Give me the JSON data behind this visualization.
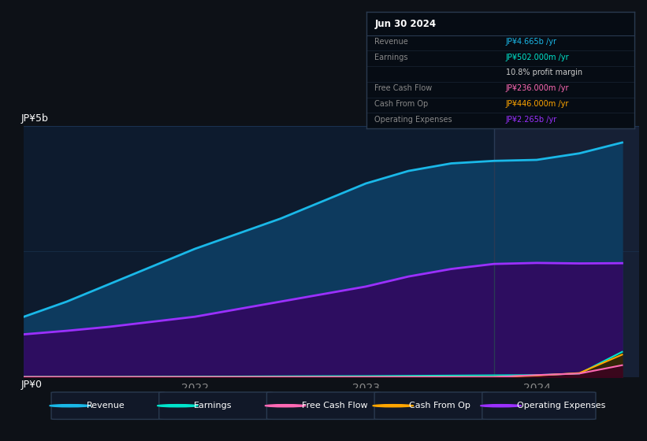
{
  "bg_color": "#0d1117",
  "plot_bg_color": "#0d1b2e",
  "highlight_bg": "#162035",
  "title": "Jun 30 2024",
  "ylabel_top": "JP¥5b",
  "ylabel_bottom": "JP¥0",
  "x_labels": [
    "2022",
    "2023",
    "2024"
  ],
  "series": {
    "Revenue": {
      "color": "#1ab8e8",
      "fill_color": "#0d3a5e",
      "values_x": [
        2021.0,
        2021.25,
        2021.5,
        2021.75,
        2022.0,
        2022.25,
        2022.5,
        2022.75,
        2023.0,
        2023.25,
        2023.5,
        2023.75,
        2024.0,
        2024.25,
        2024.5
      ],
      "values_y": [
        1.2,
        1.5,
        1.85,
        2.2,
        2.55,
        2.85,
        3.15,
        3.5,
        3.85,
        4.1,
        4.25,
        4.3,
        4.32,
        4.45,
        4.665
      ]
    },
    "Operating Expenses": {
      "color": "#9b30ff",
      "fill_color": "#2d0d60",
      "values_x": [
        2021.0,
        2021.25,
        2021.5,
        2021.75,
        2022.0,
        2022.25,
        2022.5,
        2022.75,
        2023.0,
        2023.25,
        2023.5,
        2023.75,
        2024.0,
        2024.25,
        2024.5
      ],
      "values_y": [
        0.85,
        0.92,
        1.0,
        1.1,
        1.2,
        1.35,
        1.5,
        1.65,
        1.8,
        2.0,
        2.15,
        2.25,
        2.27,
        2.26,
        2.265
      ]
    },
    "Earnings": {
      "color": "#00e5cc",
      "fill_color": "#003322",
      "values_x": [
        2021.0,
        2021.25,
        2021.5,
        2021.75,
        2022.0,
        2022.25,
        2022.5,
        2022.75,
        2023.0,
        2023.25,
        2023.5,
        2023.75,
        2024.0,
        2024.25,
        2024.5
      ],
      "values_y": [
        0.005,
        0.005,
        0.005,
        0.008,
        0.01,
        0.012,
        0.015,
        0.018,
        0.02,
        0.025,
        0.03,
        0.035,
        0.04,
        0.07,
        0.502
      ]
    },
    "Free Cash Flow": {
      "color": "#ff69b4",
      "fill_color": "#3d0022",
      "values_x": [
        2021.0,
        2021.25,
        2021.5,
        2021.75,
        2022.0,
        2022.25,
        2022.5,
        2022.75,
        2023.0,
        2023.25,
        2023.5,
        2023.75,
        2024.0,
        2024.25,
        2024.5
      ],
      "values_y": [
        0.0,
        0.0,
        0.0,
        0.0,
        0.0,
        0.0,
        0.0,
        0.0,
        0.0,
        0.0,
        0.0,
        0.0,
        0.04,
        0.07,
        0.236
      ]
    },
    "Cash From Op": {
      "color": "#ffa500",
      "fill_color": "#3d2500",
      "values_x": [
        2021.0,
        2021.25,
        2021.5,
        2021.75,
        2022.0,
        2022.25,
        2022.5,
        2022.75,
        2023.0,
        2023.25,
        2023.5,
        2023.75,
        2024.0,
        2024.25,
        2024.5
      ],
      "values_y": [
        0.0,
        0.0,
        0.0,
        0.0,
        0.0,
        0.0,
        0.0,
        0.0,
        0.0,
        0.0,
        0.0,
        0.0,
        0.03,
        0.08,
        0.446
      ]
    }
  },
  "tooltip": {
    "title": "Jun 30 2024",
    "title_color": "#ffffff",
    "bg_color": "#060c14",
    "border_color": "#2a3a50",
    "rows": [
      {
        "label": "Revenue",
        "label_color": "#888888",
        "value": "JP¥4.665b /yr",
        "value_color": "#1ab8e8"
      },
      {
        "label": "Earnings",
        "label_color": "#888888",
        "value": "JP¥502.000m /yr",
        "value_color": "#00e5cc"
      },
      {
        "label": "",
        "label_color": "#888888",
        "value": "10.8% profit margin",
        "value_color": "#cccccc"
      },
      {
        "label": "Free Cash Flow",
        "label_color": "#888888",
        "value": "JP¥236.000m /yr",
        "value_color": "#ff69b4"
      },
      {
        "label": "Cash From Op",
        "label_color": "#888888",
        "value": "JP¥446.000m /yr",
        "value_color": "#ffa500"
      },
      {
        "label": "Operating Expenses",
        "label_color": "#888888",
        "value": "JP¥2.265b /yr",
        "value_color": "#9b30ff"
      }
    ]
  },
  "highlight_x": 2023.75,
  "ylim": [
    0,
    5.0
  ],
  "xlim": [
    2021.0,
    2024.6
  ],
  "xticks": [
    2022.0,
    2023.0,
    2024.0
  ],
  "legend": [
    {
      "label": "Revenue",
      "color": "#1ab8e8"
    },
    {
      "label": "Earnings",
      "color": "#00e5cc"
    },
    {
      "label": "Free Cash Flow",
      "color": "#ff69b4"
    },
    {
      "label": "Cash From Op",
      "color": "#ffa500"
    },
    {
      "label": "Operating Expenses",
      "color": "#9b30ff"
    }
  ]
}
